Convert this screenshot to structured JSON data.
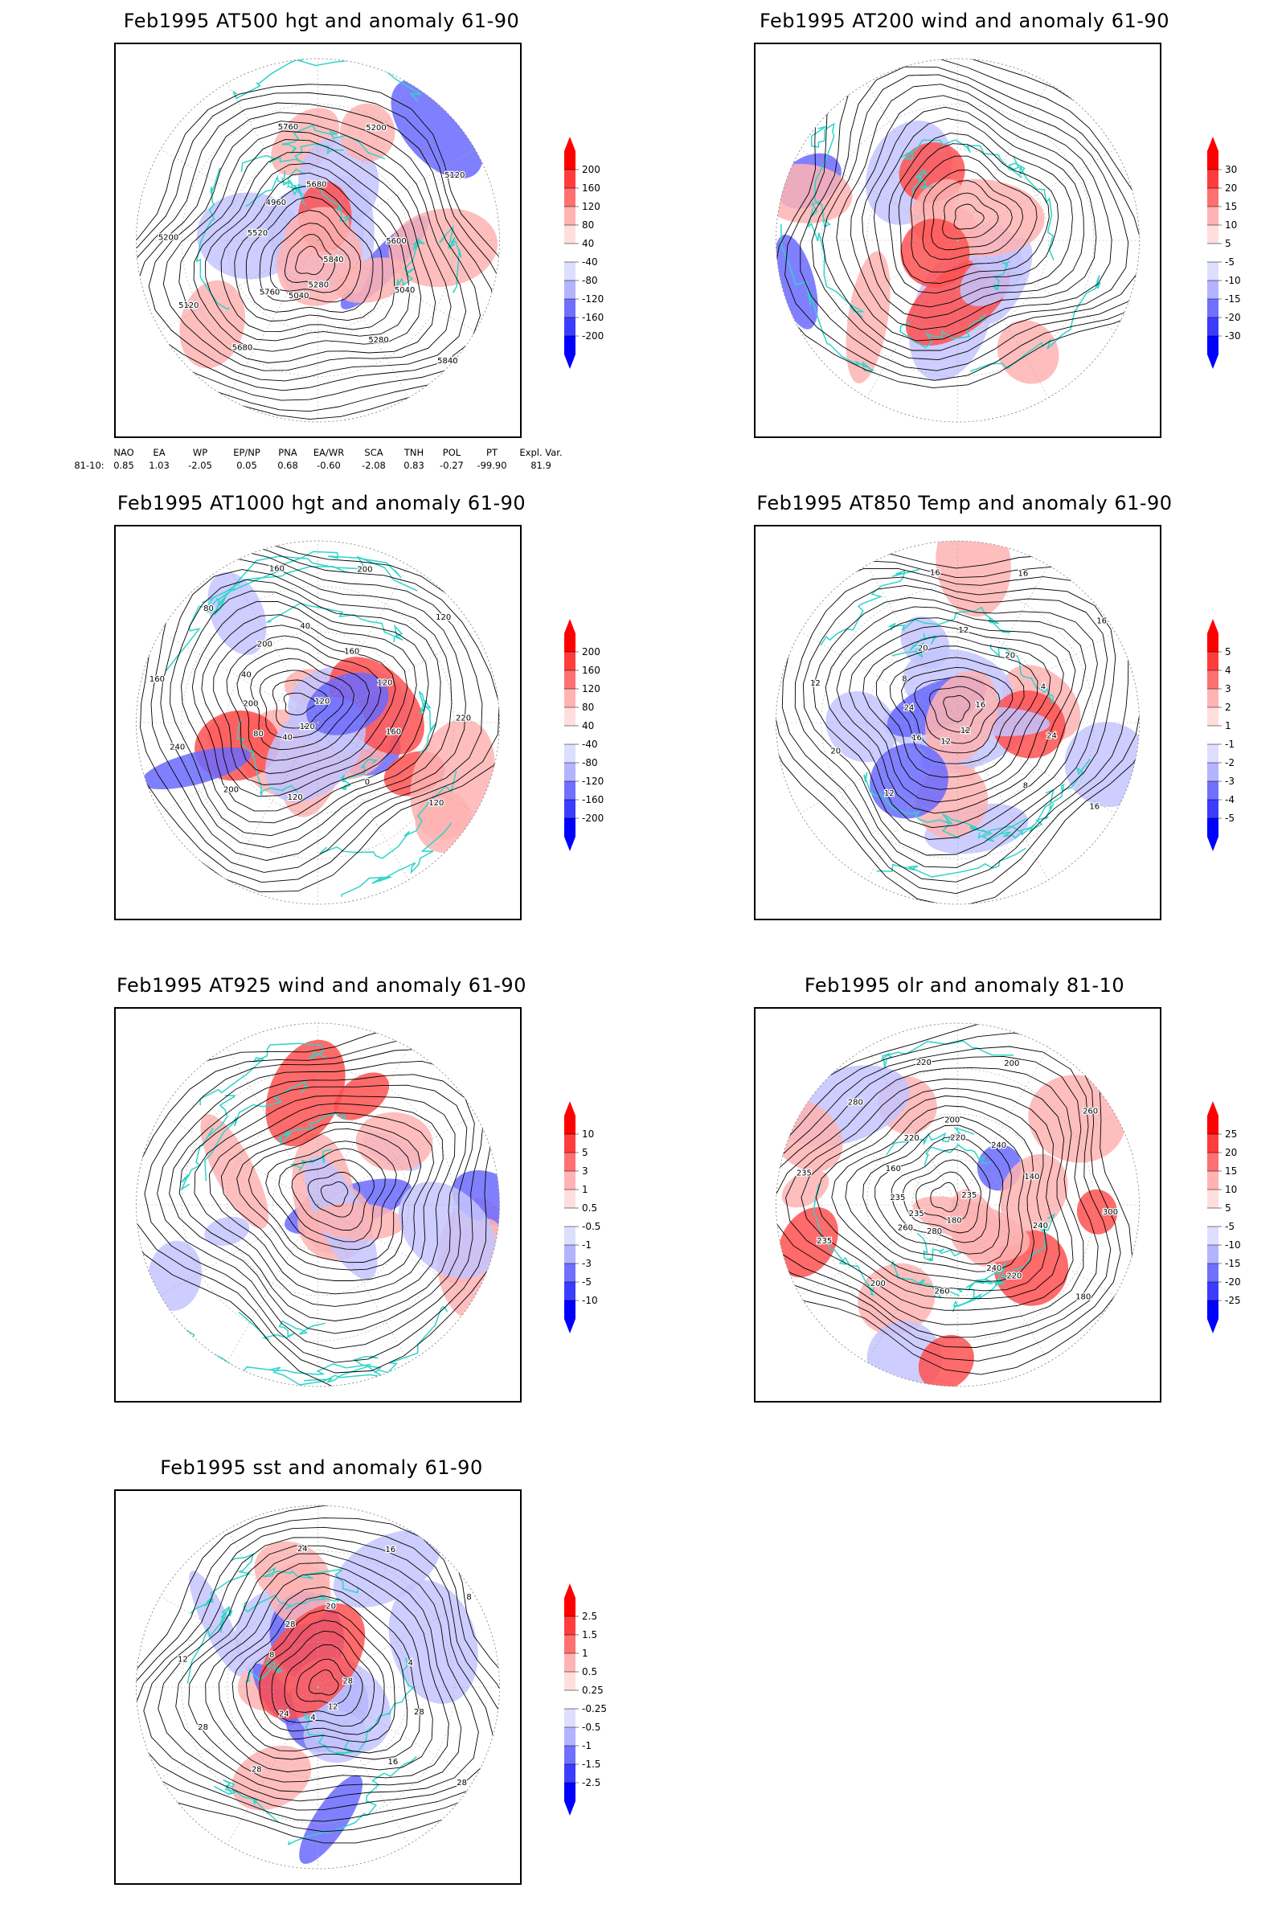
{
  "colors": {
    "red": "#ff0000",
    "pink": "#ffb3b3",
    "light_pink": "#ffdede",
    "blue": "#0000ff",
    "light_blue": "#dedeff",
    "coast": "#2ed4c8",
    "contour": "#000000"
  },
  "panels": [
    {
      "title": "Feb1995 AT500 hgt and anomaly 61-90",
      "colorbar": [
        "200",
        "160",
        "120",
        "80",
        "40",
        "-40",
        "-80",
        "-120",
        "-160",
        "-200"
      ],
      "contour_labels": [
        "5840",
        "5760",
        "5680",
        "5280",
        "5200",
        "5120",
        "5040",
        "4960",
        "5040",
        "5120",
        "5200",
        "5280",
        "5520",
        "5600",
        "5680",
        "5760",
        "5840"
      ]
    },
    {
      "title": "Feb1995 AT200 wind and anomaly 61-90",
      "colorbar": [
        "30",
        "20",
        "15",
        "10",
        "5",
        "-5",
        "-10",
        "-15",
        "-20",
        "-30"
      ],
      "contour_labels": []
    },
    {
      "title": "Feb1995 AT1000 hgt and anomaly 61-90",
      "colorbar": [
        "200",
        "160",
        "120",
        "80",
        "40",
        "-40",
        "-80",
        "-120",
        "-160",
        "-200"
      ],
      "contour_labels": [
        "120",
        "80",
        "40",
        "0",
        "160",
        "120",
        "40",
        "200",
        "160",
        "240",
        "200",
        "120",
        "40",
        "120",
        "200",
        "160",
        "120",
        "200",
        "160",
        "120",
        "80",
        "220"
      ]
    },
    {
      "title": "Feb1995 AT850 Temp and anomaly 61-90",
      "colorbar": [
        "5",
        "4",
        "3",
        "2",
        "1",
        "-1",
        "-2",
        "-3",
        "-4",
        "-5"
      ],
      "contour_labels": [
        "16",
        "16",
        "12",
        "8",
        "12",
        "16",
        "12",
        "20",
        "24",
        "20",
        "16",
        "12",
        "8",
        "4",
        "12",
        "16",
        "16",
        "24",
        "20"
      ]
    },
    {
      "title": "Feb1995 AT925 wind and anomaly 61-90",
      "colorbar": [
        "10",
        "5",
        "3",
        "1",
        "0.5",
        "-0.5",
        "-1",
        "-3",
        "-5",
        "-10"
      ],
      "contour_labels": []
    },
    {
      "title": "Feb1995 olr and anomaly 81-10",
      "colorbar": [
        "25",
        "20",
        "15",
        "10",
        "5",
        "-5",
        "-10",
        "-15",
        "-20",
        "-25"
      ],
      "contour_labels": [
        "235",
        "260",
        "200",
        "220",
        "235",
        "260",
        "280",
        "220",
        "240",
        "235",
        "200",
        "180",
        "160",
        "140",
        "200",
        "220",
        "180",
        "235",
        "240",
        "260",
        "280",
        "300",
        "235",
        "220",
        "240"
      ]
    },
    {
      "title": "Feb1995 sst and anomaly 61-90",
      "colorbar": [
        "2.5",
        "1.5",
        "1",
        "0.5",
        "0.25",
        "-0.25",
        "-0.5",
        "-1",
        "-1.5",
        "-2.5"
      ],
      "contour_labels": [
        "28",
        "24",
        "20",
        "16",
        "12",
        "8",
        "4",
        "28",
        "28",
        "28",
        "16",
        "12",
        "8",
        "4",
        "28",
        "24",
        "28"
      ]
    }
  ],
  "teleconnections": {
    "headers": [
      "NAO",
      "EA",
      "WP",
      "EP/NP",
      "PNA",
      "EA/WR",
      "SCA",
      "TNH",
      "POL",
      "PT",
      "Expl. Var."
    ],
    "row_label": "81-10:",
    "values": [
      "0.85",
      "1.03",
      "-2.05",
      "0.05",
      "0.68",
      "-0.60",
      "-2.08",
      "0.83",
      "-0.27",
      "-99.90",
      "81.9"
    ]
  }
}
